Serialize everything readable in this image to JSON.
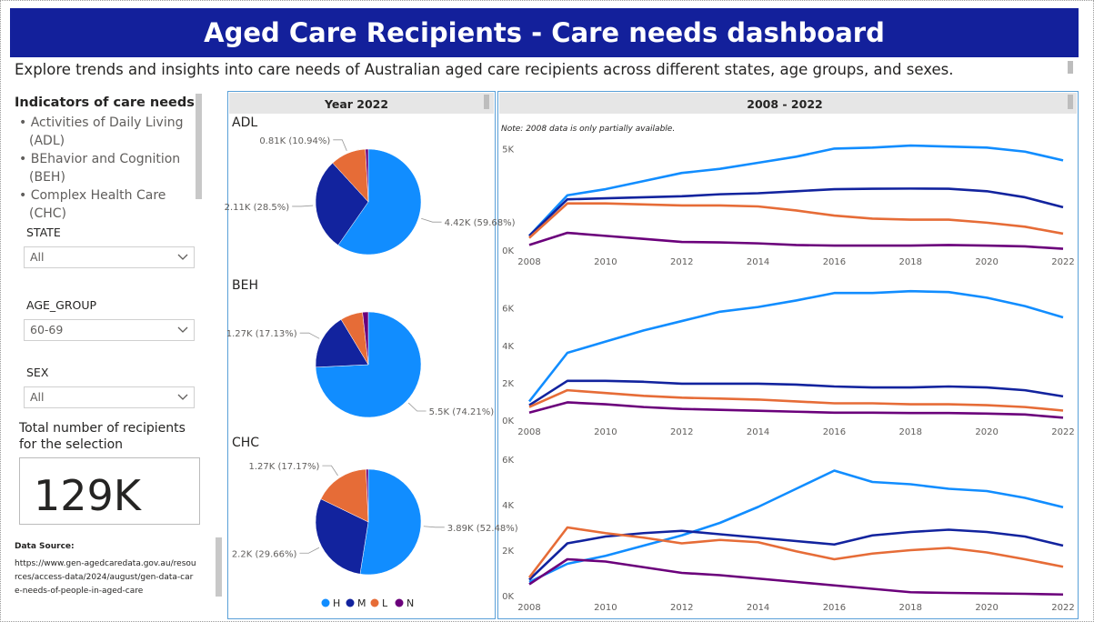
{
  "header": {
    "title": "Aged Care Recipients - Care needs dashboard",
    "subtitle": "Explore trends and insights into care needs of Australian aged care recipients across different states, age groups, and sexes."
  },
  "sidebar": {
    "indicators_title": "Indicators of care needs:",
    "indicators": [
      "Activities of Daily Living (ADL)",
      "BEhavior and Cognition (BEH)",
      "Complex Health Care (CHC)"
    ],
    "filters": [
      {
        "label": "STATE",
        "value": "All"
      },
      {
        "label": "AGE_GROUP",
        "value": "60-69"
      },
      {
        "label": "SEX",
        "value": "All"
      }
    ],
    "total_label": "Total number of recipients for the selection",
    "total_value": "129K",
    "source_title": "Data Source:",
    "source_url": "https://www.gen-agedcaredata.gov.au/resources/access-data/2024/august/gen-data-care-needs-of-people-in-aged-care"
  },
  "panels": {
    "year_title": "Year 2022",
    "trend_title": "2008 - 2022",
    "note": "Note: 2008 data is only partially available."
  },
  "chart_data": [
    {
      "type": "pie",
      "title": "ADL",
      "categories": [
        "H",
        "M",
        "L",
        "N"
      ],
      "colors": [
        "#118dff",
        "#12239e",
        "#e66c37",
        "#6b007b"
      ],
      "values": [
        4420,
        2110,
        810,
        65
      ],
      "value_labels": [
        "4.42K (59.68%)",
        "2.11K (28.5%)",
        "0.81K (10.94%)",
        null
      ]
    },
    {
      "type": "pie",
      "title": "BEH",
      "categories": [
        "H",
        "M",
        "L",
        "N"
      ],
      "colors": [
        "#118dff",
        "#12239e",
        "#e66c37",
        "#6b007b"
      ],
      "values": [
        5500,
        1270,
        510,
        130
      ],
      "value_labels": [
        "5.5K (74.21%)",
        "1.27K (17.13%)",
        null,
        null
      ]
    },
    {
      "type": "pie",
      "title": "CHC",
      "categories": [
        "H",
        "M",
        "L",
        "N"
      ],
      "colors": [
        "#118dff",
        "#12239e",
        "#e66c37",
        "#6b007b"
      ],
      "values": [
        3890,
        2200,
        1270,
        50
      ],
      "value_labels": [
        "3.89K (52.48%)",
        "2.2K (29.66%)",
        "1.27K (17.17%)",
        null
      ]
    },
    {
      "type": "line",
      "x": [
        2008,
        2009,
        2010,
        2011,
        2012,
        2013,
        2014,
        2015,
        2016,
        2017,
        2018,
        2019,
        2020,
        2021,
        2022
      ],
      "xlim": [
        2008,
        2022
      ],
      "xticks": [
        2008,
        2010,
        2012,
        2014,
        2016,
        2018,
        2020,
        2022
      ],
      "ylim": [
        0,
        5600
      ],
      "yticks": [
        {
          "value": 0,
          "label": "0K"
        },
        {
          "value": 5000,
          "label": "5K"
        }
      ],
      "grid": false,
      "series": [
        {
          "color": "#118dff",
          "values": [
            700,
            2700,
            3000,
            3400,
            3800,
            4000,
            4300,
            4600,
            5000,
            5050,
            5150,
            5100,
            5050,
            4850,
            4420
          ]
        },
        {
          "color": "#12239e",
          "values": [
            700,
            2500,
            2550,
            2600,
            2650,
            2750,
            2800,
            2900,
            3000,
            3020,
            3030,
            3020,
            2900,
            2600,
            2110
          ]
        },
        {
          "color": "#e66c37",
          "values": [
            600,
            2300,
            2300,
            2250,
            2200,
            2200,
            2150,
            1950,
            1700,
            1550,
            1500,
            1500,
            1350,
            1150,
            810
          ]
        },
        {
          "color": "#6b007b",
          "values": [
            250,
            850,
            700,
            550,
            400,
            380,
            330,
            250,
            220,
            220,
            220,
            250,
            220,
            180,
            65
          ]
        }
      ]
    },
    {
      "type": "line",
      "x": [
        2008,
        2009,
        2010,
        2011,
        2012,
        2013,
        2014,
        2015,
        2016,
        2017,
        2018,
        2019,
        2020,
        2021,
        2022
      ],
      "xlim": [
        2008,
        2022
      ],
      "xticks": [
        2008,
        2010,
        2012,
        2014,
        2016,
        2018,
        2020,
        2022
      ],
      "ylim": [
        0,
        7200
      ],
      "yticks": [
        {
          "value": 0,
          "label": "0K"
        },
        {
          "value": 2000,
          "label": "2K"
        },
        {
          "value": 4000,
          "label": "4K"
        },
        {
          "value": 6000,
          "label": "6K"
        }
      ],
      "grid": false,
      "series": [
        {
          "color": "#118dff",
          "values": [
            1000,
            3600,
            4200,
            4800,
            5300,
            5800,
            6050,
            6400,
            6800,
            6800,
            6900,
            6850,
            6550,
            6100,
            5500
          ]
        },
        {
          "color": "#12239e",
          "values": [
            800,
            2100,
            2100,
            2050,
            1950,
            1950,
            1950,
            1900,
            1800,
            1750,
            1750,
            1800,
            1750,
            1600,
            1270
          ]
        },
        {
          "color": "#e66c37",
          "values": [
            700,
            1600,
            1450,
            1300,
            1200,
            1150,
            1100,
            1000,
            900,
            900,
            850,
            850,
            800,
            700,
            510
          ]
        },
        {
          "color": "#6b007b",
          "values": [
            400,
            950,
            850,
            700,
            600,
            550,
            500,
            450,
            400,
            400,
            380,
            380,
            350,
            300,
            130
          ]
        }
      ]
    },
    {
      "type": "line",
      "x": [
        2008,
        2009,
        2010,
        2011,
        2012,
        2013,
        2014,
        2015,
        2016,
        2017,
        2018,
        2019,
        2020,
        2021,
        2022
      ],
      "xlim": [
        2008,
        2022
      ],
      "xticks": [
        2008,
        2010,
        2012,
        2014,
        2016,
        2018,
        2020,
        2022
      ],
      "ylim": [
        0,
        6200
      ],
      "yticks": [
        {
          "value": 0,
          "label": "0K"
        },
        {
          "value": 2000,
          "label": "2K"
        },
        {
          "value": 4000,
          "label": "4K"
        },
        {
          "value": 6000,
          "label": "6K"
        }
      ],
      "grid": false,
      "series": [
        {
          "color": "#118dff",
          "values": [
            600,
            1400,
            1750,
            2200,
            2650,
            3200,
            3900,
            4700,
            5500,
            5000,
            4900,
            4700,
            4600,
            4300,
            3890
          ]
        },
        {
          "color": "#12239e",
          "values": [
            700,
            2300,
            2600,
            2750,
            2850,
            2700,
            2550,
            2400,
            2250,
            2650,
            2800,
            2900,
            2800,
            2600,
            2200
          ]
        },
        {
          "color": "#e66c37",
          "values": [
            800,
            3000,
            2750,
            2550,
            2300,
            2450,
            2350,
            1950,
            1600,
            1850,
            2000,
            2100,
            1900,
            1600,
            1270
          ]
        },
        {
          "color": "#6b007b",
          "values": [
            500,
            1600,
            1500,
            1250,
            1000,
            900,
            750,
            600,
            450,
            300,
            150,
            120,
            100,
            80,
            50
          ]
        }
      ]
    }
  ]
}
